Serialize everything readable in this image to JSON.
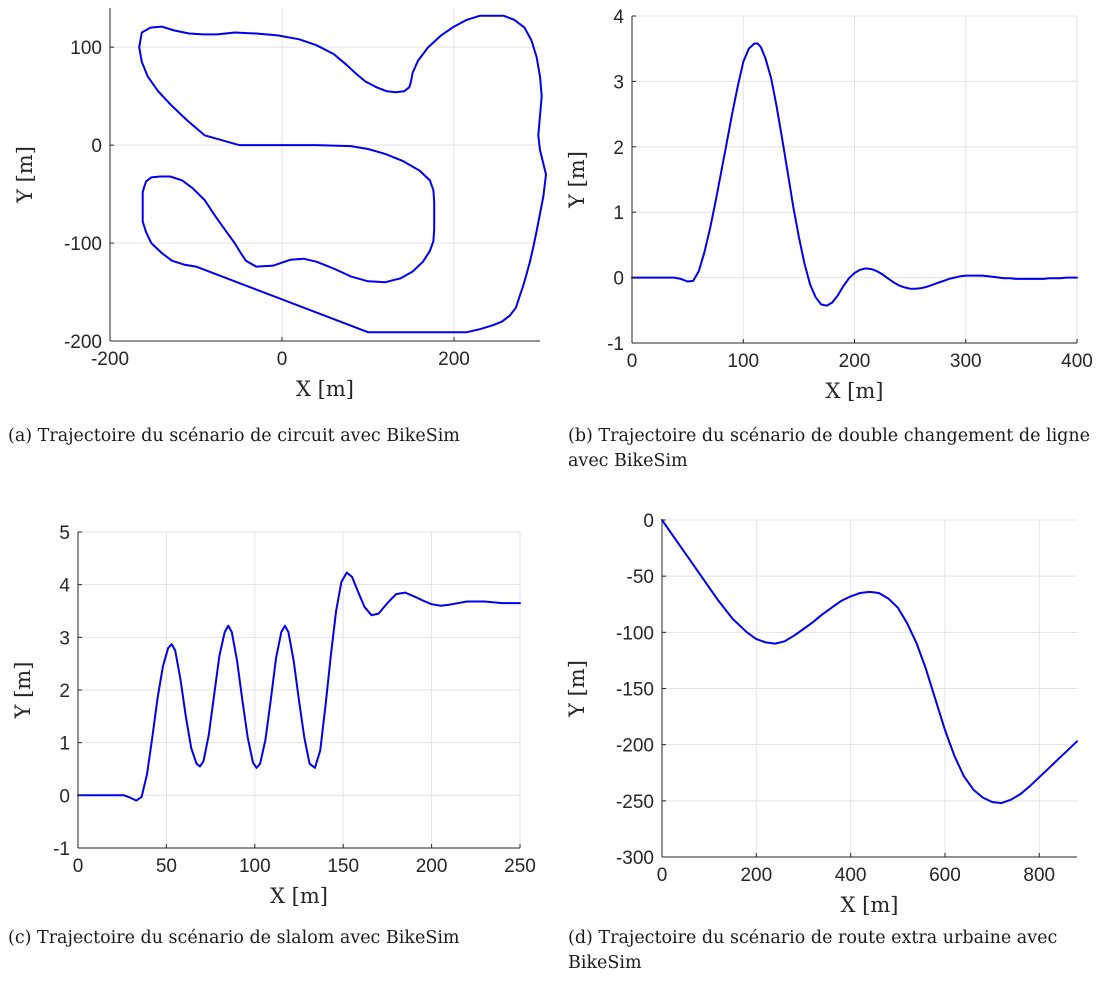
{
  "chart_data": [
    {
      "type": "line",
      "title": "",
      "xlabel": "X [m]",
      "ylabel": "Y [m]",
      "xlim": [
        -200,
        300
      ],
      "ylim": [
        -200,
        140
      ],
      "xticks": [
        -200,
        0,
        200
      ],
      "yticks": [
        -200,
        -100,
        0,
        100
      ],
      "grid": true,
      "caption": "(a) Trajectoire du scénario de circuit avec BikeSim",
      "series": [
        {
          "color": "#0000ee",
          "x": [
            -50,
            0,
            40,
            80,
            100,
            120,
            140,
            160,
            172,
            176,
            177,
            177,
            176,
            172,
            164,
            152,
            138,
            120,
            100,
            80,
            60,
            40,
            25,
            10,
            -10,
            -30,
            -42,
            -48,
            -55,
            -65,
            -78,
            -90,
            -104,
            -116,
            -130,
            -142,
            -152,
            -158,
            -160,
            -162,
            -162,
            -162,
            -158,
            -152,
            -140,
            -128,
            -114,
            -100,
            100,
            187,
            200,
            215,
            230,
            245,
            256,
            265,
            272,
            276,
            280,
            284,
            288,
            292,
            296,
            300,
            304,
            307,
            300,
            298,
            300,
            302,
            300,
            296,
            290,
            282,
            270,
            258,
            245,
            230,
            215,
            200,
            185,
            170,
            158,
            152,
            150,
            148,
            142,
            132,
            122,
            110,
            97,
            86,
            75,
            60,
            40,
            20,
            -5,
            -30,
            -55,
            -75,
            -92,
            -108,
            -125,
            -140,
            -153,
            -163,
            -166,
            -163,
            -156,
            -144,
            -128,
            -110,
            -90,
            -50
          ],
          "y": [
            0,
            0,
            0,
            -1,
            -4,
            -9,
            -16,
            -26,
            -36,
            -46,
            -58,
            -86,
            -98,
            -108,
            -119,
            -129,
            -136,
            -140,
            -139,
            -134,
            -126,
            -119,
            -116,
            -117,
            -123,
            -124,
            -118,
            -110,
            -100,
            -88,
            -72,
            -56,
            -44,
            -36,
            -32,
            -32,
            -33,
            -37,
            -42,
            -48,
            -58,
            -78,
            -89,
            -100,
            -110,
            -118,
            -122,
            -124,
            -191,
            -191,
            -191,
            -191,
            -188,
            -184,
            -180,
            -174,
            -166,
            -155,
            -145,
            -133,
            -120,
            -105,
            -88,
            -70,
            -52,
            -30,
            -5,
            10,
            30,
            50,
            70,
            90,
            107,
            120,
            128,
            132,
            132,
            132,
            128,
            121,
            112,
            100,
            86,
            74,
            65,
            59,
            55,
            54,
            55,
            59,
            65,
            73,
            82,
            93,
            102,
            108,
            112,
            114,
            115,
            113,
            113,
            114,
            117,
            121,
            120,
            115,
            100,
            85,
            70,
            55,
            40,
            25,
            10,
            0
          ]
        }
      ]
    },
    {
      "type": "line",
      "title": "",
      "xlabel": "X [m]",
      "ylabel": "Y [m]",
      "xlim": [
        0,
        400
      ],
      "ylim": [
        -1,
        4
      ],
      "xticks": [
        0,
        100,
        200,
        300,
        400
      ],
      "yticks": [
        -1,
        0,
        1,
        2,
        3,
        4
      ],
      "grid": true,
      "caption": "(b) Trajectoire du scénario de double changement de ligne avec BikeSim",
      "series": [
        {
          "color": "#0000ee",
          "x": [
            0,
            38,
            44,
            50,
            55,
            60,
            65,
            70,
            75,
            80,
            85,
            90,
            95,
            100,
            105,
            110,
            113,
            116,
            120,
            125,
            130,
            135,
            140,
            145,
            150,
            155,
            160,
            165,
            170,
            175,
            180,
            185,
            190,
            195,
            200,
            205,
            210,
            215,
            220,
            225,
            230,
            235,
            240,
            245,
            250,
            255,
            260,
            265,
            270,
            275,
            280,
            285,
            290,
            295,
            300,
            305,
            310,
            315,
            320,
            325,
            330,
            335,
            340,
            345,
            350,
            355,
            360,
            365,
            370,
            375,
            380,
            385,
            390,
            395,
            400
          ],
          "y": [
            0,
            0,
            -0.02,
            -0.06,
            -0.05,
            0.1,
            0.38,
            0.74,
            1.15,
            1.6,
            2.05,
            2.5,
            2.92,
            3.3,
            3.5,
            3.58,
            3.58,
            3.52,
            3.35,
            3.05,
            2.62,
            2.12,
            1.6,
            1.08,
            0.62,
            0.22,
            -0.1,
            -0.3,
            -0.41,
            -0.43,
            -0.38,
            -0.27,
            -0.13,
            -0.01,
            0.07,
            0.12,
            0.14,
            0.13,
            0.1,
            0.05,
            -0.01,
            -0.07,
            -0.12,
            -0.15,
            -0.17,
            -0.17,
            -0.16,
            -0.14,
            -0.11,
            -0.08,
            -0.05,
            -0.02,
            0.0,
            0.02,
            0.03,
            0.03,
            0.03,
            0.03,
            0.02,
            0.01,
            0.0,
            -0.01,
            -0.01,
            -0.02,
            -0.02,
            -0.02,
            -0.02,
            -0.02,
            -0.02,
            -0.01,
            -0.01,
            -0.01,
            0.0,
            0.0,
            0.0
          ]
        }
      ]
    },
    {
      "type": "line",
      "title": "",
      "xlabel": "X [m]",
      "ylabel": "Y [m]",
      "xlim": [
        0,
        250
      ],
      "ylim": [
        -1,
        5
      ],
      "xticks": [
        0,
        50,
        100,
        150,
        200,
        250
      ],
      "yticks": [
        -1,
        0,
        1,
        2,
        3,
        4,
        5
      ],
      "grid": true,
      "caption": "(c) Trajectoire du scénario de slalom avec BikeSim",
      "series": [
        {
          "color": "#0000ee",
          "x": [
            0,
            26,
            30,
            33,
            36,
            39,
            42,
            45,
            48,
            51,
            53,
            55,
            58,
            61,
            64,
            67,
            69,
            71,
            74,
            77,
            80,
            83,
            85,
            87,
            90,
            93,
            96,
            99,
            101,
            103,
            106,
            109,
            112,
            115,
            117,
            119,
            122,
            125,
            128,
            131,
            134,
            137,
            140,
            143,
            146,
            149,
            152,
            155,
            158,
            162,
            166,
            170,
            175,
            180,
            185,
            190,
            195,
            200,
            205,
            210,
            220,
            230,
            240,
            250
          ],
          "y": [
            0,
            0,
            -0.05,
            -0.1,
            -0.03,
            0.4,
            1.1,
            1.85,
            2.45,
            2.8,
            2.87,
            2.75,
            2.2,
            1.5,
            0.9,
            0.6,
            0.55,
            0.65,
            1.15,
            1.9,
            2.65,
            3.1,
            3.22,
            3.1,
            2.55,
            1.8,
            1.1,
            0.62,
            0.52,
            0.6,
            1.05,
            1.8,
            2.6,
            3.1,
            3.22,
            3.1,
            2.55,
            1.8,
            1.1,
            0.6,
            0.52,
            0.85,
            1.7,
            2.65,
            3.5,
            4.05,
            4.23,
            4.15,
            3.9,
            3.58,
            3.42,
            3.45,
            3.65,
            3.82,
            3.85,
            3.78,
            3.7,
            3.63,
            3.6,
            3.62,
            3.68,
            3.68,
            3.65,
            3.65
          ]
        }
      ]
    },
    {
      "type": "line",
      "title": "",
      "xlabel": "X [m]",
      "ylabel": "Y [m]",
      "xlim": [
        0,
        880
      ],
      "ylim": [
        -300,
        0
      ],
      "xticks": [
        0,
        200,
        400,
        600,
        800
      ],
      "yticks": [
        -300,
        -250,
        -200,
        -150,
        -100,
        -50,
        0
      ],
      "grid": true,
      "caption": "(d) Trajectoire du scénario de route extra urbaine avec BikeSim",
      "series": [
        {
          "color": "#0000ee",
          "x": [
            0,
            30,
            60,
            90,
            120,
            150,
            180,
            200,
            220,
            240,
            260,
            280,
            300,
            320,
            340,
            360,
            380,
            400,
            420,
            440,
            460,
            480,
            500,
            520,
            540,
            560,
            580,
            600,
            620,
            640,
            660,
            680,
            700,
            720,
            740,
            760,
            780,
            800,
            820,
            840,
            860,
            880
          ],
          "y": [
            0,
            -18,
            -36,
            -54,
            -72,
            -88,
            -100,
            -106,
            -109,
            -110,
            -108,
            -103,
            -97,
            -91,
            -84,
            -78,
            -72,
            -68,
            -65,
            -64,
            -65,
            -70,
            -78,
            -92,
            -110,
            -133,
            -160,
            -187,
            -210,
            -228,
            -240,
            -247,
            -251,
            -252,
            -249,
            -244,
            -237,
            -229,
            -221,
            -213,
            -205,
            -197
          ]
        }
      ]
    }
  ]
}
